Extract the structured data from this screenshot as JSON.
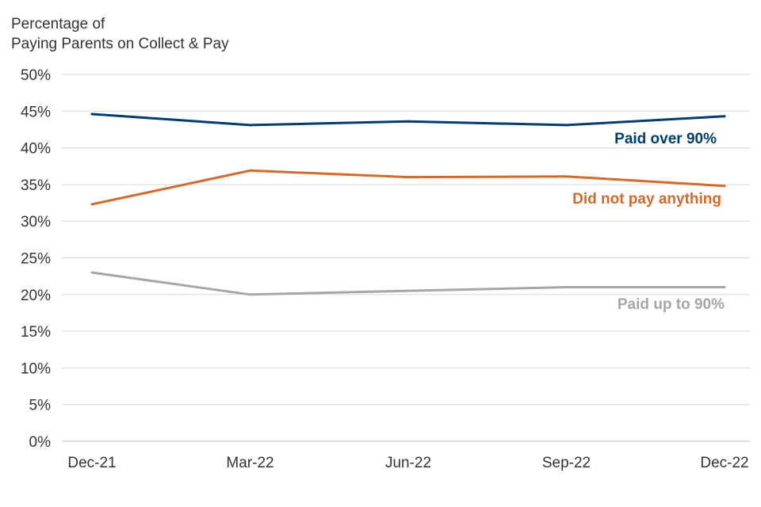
{
  "chart_data": {
    "type": "line",
    "title": "",
    "ylabel_line1": "Percentage of",
    "ylabel_line2": "Paying Parents on Collect & Pay",
    "xlabel": "",
    "categories": [
      "Dec-21",
      "Mar-22",
      "Jun-22",
      "Sep-22",
      "Dec-22"
    ],
    "ylim": [
      0,
      50
    ],
    "yticks": [
      0,
      5,
      10,
      15,
      20,
      25,
      30,
      35,
      40,
      45,
      50
    ],
    "ytick_labels": [
      "0%",
      "5%",
      "10%",
      "15%",
      "20%",
      "25%",
      "30%",
      "35%",
      "40%",
      "45%",
      "50%"
    ],
    "grid": "horizontal",
    "legend": "inline labels at right end of each line",
    "series": [
      {
        "name": "Paid over 90%",
        "color": "#003c71",
        "values": [
          44.6,
          43.1,
          43.6,
          43.1,
          44.3
        ]
      },
      {
        "name": "Did not pay anything",
        "color": "#d4692a",
        "values": [
          32.3,
          36.9,
          36.0,
          36.1,
          34.8
        ]
      },
      {
        "name": "Paid up to 90%",
        "color": "#a6a6a6",
        "values": [
          23.0,
          20.0,
          20.5,
          21.0,
          21.0
        ]
      }
    ]
  }
}
